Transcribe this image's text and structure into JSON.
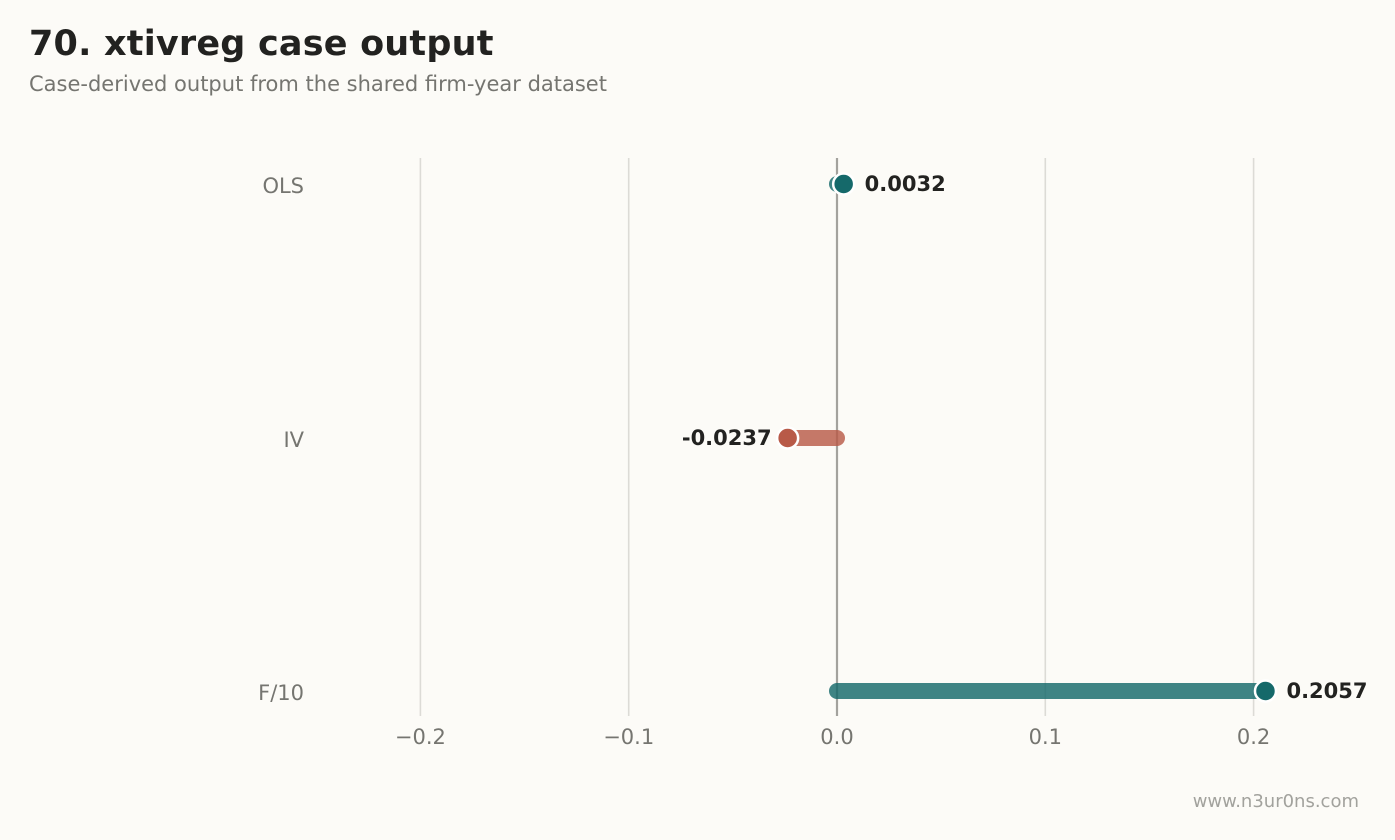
{
  "header": {
    "title": "70. xtivreg case output",
    "subtitle": "Case-derived output from the shared firm-year dataset"
  },
  "footer": {
    "watermark": "www.n3ur0ns.com"
  },
  "colors": {
    "background": "#fcfbf7",
    "positive": "#15696a",
    "negative": "#b85a48",
    "grid": "#dcdbd6",
    "zero_line": "#a3a29d"
  },
  "chart_data": {
    "type": "bar",
    "orientation": "horizontal",
    "style": "lollipop",
    "categories": [
      "OLS",
      "IV",
      "F/10"
    ],
    "values": [
      0.0032,
      -0.0237,
      0.2057
    ],
    "value_labels": [
      "0.0032",
      "-0.0237",
      "0.2057"
    ],
    "xlim": [
      -0.25,
      0.25
    ],
    "xticks": [
      -0.2,
      -0.1,
      0.0,
      0.1,
      0.2
    ],
    "xtick_labels": [
      "−0.2",
      "−0.1",
      "0.0",
      "0.1",
      "0.2"
    ],
    "grid": "vertical",
    "title": "",
    "xlabel": "",
    "ylabel": ""
  }
}
